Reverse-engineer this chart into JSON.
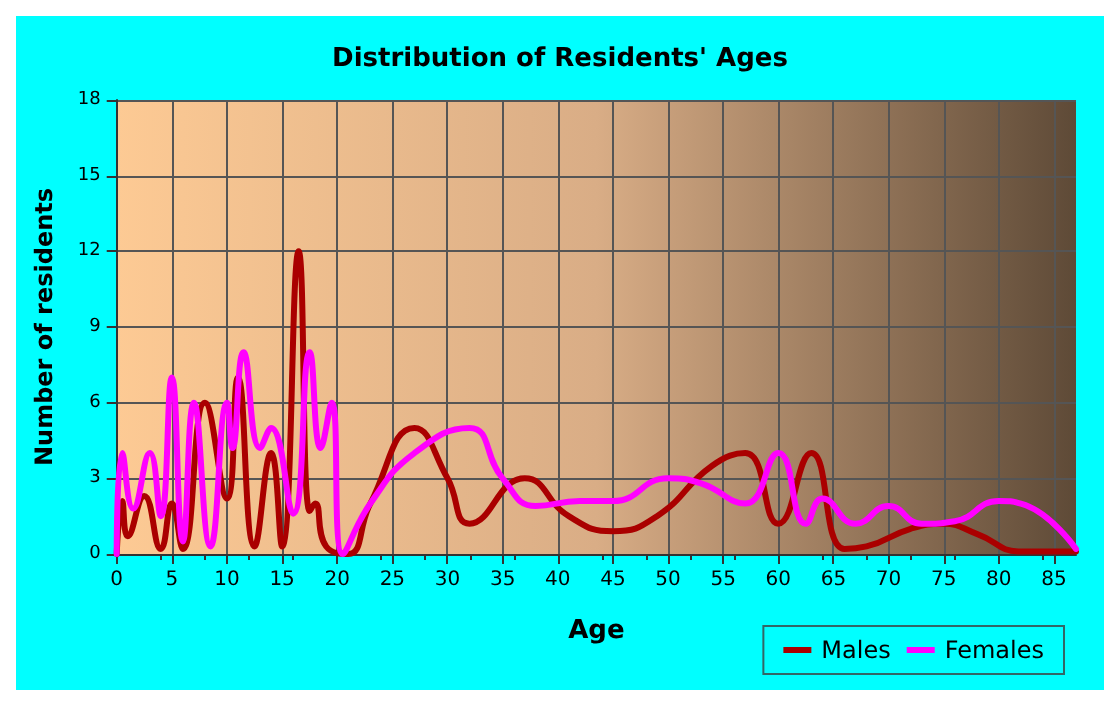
{
  "chart_data": {
    "type": "line",
    "title": "Distribution of Residents' Ages",
    "xlabel": "Age",
    "ylabel": "Number of residents",
    "xlim": [
      0,
      87
    ],
    "xticks": [
      0,
      5,
      10,
      15,
      20,
      25,
      30,
      35,
      40,
      45,
      50,
      55,
      60,
      65,
      70,
      75,
      80,
      85
    ],
    "ylim": [
      0,
      18
    ],
    "yticks": [
      0,
      3,
      6,
      9,
      12,
      15,
      18
    ],
    "grid": true,
    "legend": "bottom right",
    "marker": "none",
    "line_style": "solid",
    "series": [
      {
        "name": "Males",
        "color": "#aa0000",
        "x": [
          0,
          0.5,
          1,
          2.5,
          4,
          5,
          6,
          8,
          10,
          11,
          12.5,
          14,
          15,
          16.5,
          17.5,
          18,
          19,
          21,
          23,
          27,
          30,
          32,
          37,
          41,
          45,
          49,
          54,
          57,
          60,
          63,
          66,
          68,
          72,
          75,
          78,
          82,
          87
        ],
        "values": [
          0,
          2.1,
          0.7,
          2.3,
          0.2,
          2,
          0.2,
          6,
          2.2,
          7,
          0.3,
          4,
          0.3,
          12,
          1.7,
          2,
          0.3,
          0,
          2,
          5,
          3,
          1.2,
          3,
          1.5,
          0.9,
          1.5,
          3.5,
          4,
          1.2,
          4,
          0.2,
          0.3,
          1,
          1.2,
          0.8,
          0.1,
          0.1
        ]
      },
      {
        "name": "Females",
        "color": "#ff00ff",
        "x": [
          0,
          0.5,
          1.5,
          3,
          4,
          5,
          6,
          7,
          8.5,
          10,
          10.5,
          11.5,
          13,
          14,
          16,
          17.5,
          18.5,
          19.5,
          20.5,
          23,
          27,
          32,
          35,
          38,
          42,
          45,
          50,
          53,
          57,
          60,
          62.5,
          64,
          67,
          70,
          73,
          76,
          80,
          82,
          87
        ],
        "values": [
          0,
          4,
          1.8,
          4,
          1.5,
          7,
          0.5,
          6,
          0.3,
          6,
          4.2,
          8,
          4.2,
          5,
          1.6,
          8,
          4.2,
          6,
          0,
          2,
          4,
          5,
          3,
          1.9,
          2.1,
          2.1,
          3,
          2.8,
          2,
          4,
          1.2,
          2.2,
          1.2,
          1.9,
          1.2,
          1.3,
          2.1,
          2,
          0.2
        ]
      }
    ]
  }
}
